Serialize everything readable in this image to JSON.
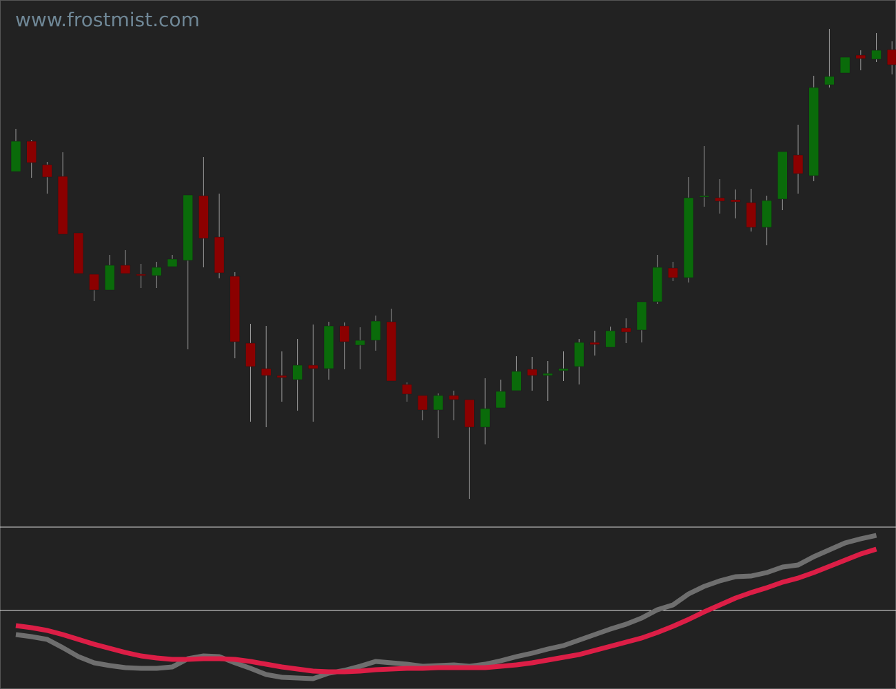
{
  "watermark": "www.frostmist.com",
  "chart_data": [
    {
      "type": "candlestick",
      "up_color": "#0a6b0a",
      "down_color": "#8b0000",
      "wick_color": "#9a9a9a",
      "ylim": [
        23.5,
        100
      ],
      "open": [
        75.1,
        79.5,
        76.1,
        74.4,
        66.2,
        60.2,
        57.9,
        61.5,
        60.2,
        60.0,
        61.3,
        62.2,
        71.6,
        65.6,
        59.9,
        50.2,
        46.5,
        45.5,
        44.9,
        47.0,
        46.5,
        52.7,
        49.9,
        50.6,
        53.3,
        44.2,
        42.6,
        40.5,
        42.6,
        42.0,
        38.0,
        40.8,
        43.3,
        46.4,
        45.5,
        46.2,
        46.8,
        50.3,
        49.6,
        52.4,
        52.1,
        56.2,
        61.1,
        59.7,
        71.4,
        71.3,
        71.0,
        70.6,
        67.0,
        71.1,
        77.5,
        74.5,
        87.7,
        89.4,
        92.0,
        91.4,
        92.8
      ],
      "high": [
        81.3,
        79.7,
        76.5,
        77.9,
        66.2,
        60.2,
        63.0,
        63.7,
        61.7,
        62.0,
        63.0,
        71.7,
        77.2,
        71.9,
        60.5,
        53.0,
        52.7,
        49.0,
        50.8,
        52.9,
        53.3,
        53.2,
        52.5,
        54.2,
        55.2,
        44.5,
        42.6,
        42.9,
        43.3,
        42.0,
        45.1,
        44.9,
        48.3,
        48.2,
        47.6,
        49.0,
        50.8,
        52.0,
        52.6,
        53.8,
        56.2,
        63.0,
        62.0,
        74.3,
        78.8,
        74.0,
        72.5,
        72.6,
        71.6,
        78.0,
        81.9,
        89.0,
        95.8,
        91.7,
        92.7,
        95.2,
        94.0
      ],
      "low": [
        75.1,
        74.2,
        71.9,
        66.0,
        60.3,
        56.3,
        57.9,
        60.3,
        58.2,
        58.2,
        61.3,
        49.3,
        61.2,
        59.6,
        48.0,
        38.8,
        38.0,
        41.7,
        40.4,
        38.8,
        44.9,
        46.4,
        46.4,
        49.1,
        44.7,
        41.7,
        39.0,
        36.4,
        39.0,
        27.6,
        35.5,
        40.8,
        43.3,
        43.3,
        41.8,
        44.7,
        44.2,
        48.4,
        49.6,
        50.2,
        50.3,
        55.9,
        59.2,
        59.0,
        70.0,
        69.0,
        68.3,
        66.4,
        64.4,
        69.5,
        71.9,
        73.7,
        87.3,
        89.4,
        89.8,
        91.0,
        89.2
      ],
      "close": [
        79.5,
        76.4,
        74.3,
        66.0,
        60.3,
        57.9,
        61.5,
        60.3,
        60.0,
        61.2,
        62.4,
        71.7,
        65.4,
        60.4,
        50.4,
        46.8,
        45.5,
        45.2,
        47.0,
        46.5,
        52.7,
        50.4,
        50.6,
        53.4,
        44.7,
        42.8,
        40.5,
        42.6,
        42.0,
        38.0,
        40.7,
        43.2,
        46.1,
        45.5,
        45.8,
        46.5,
        50.3,
        50.0,
        52.0,
        51.8,
        56.2,
        61.2,
        59.7,
        71.3,
        71.6,
        70.8,
        70.7,
        67.0,
        70.9,
        78.0,
        74.8,
        87.3,
        88.9,
        91.7,
        91.5,
        92.7,
        90.6
      ]
    },
    {
      "type": "line",
      "ylim": [
        0,
        23.5
      ],
      "levels": [
        11.4
      ],
      "level_color": "#e6e6e6",
      "series": [
        {
          "color": "#6e6e6e",
          "values": [
            7.9,
            7.6,
            7.2,
            6.0,
            4.7,
            3.8,
            3.4,
            3.1,
            3.0,
            3.0,
            3.2,
            4.4,
            4.8,
            4.7,
            3.8,
            3.0,
            2.1,
            1.7,
            1.6,
            1.5,
            2.3,
            2.7,
            3.3,
            4.0,
            3.8,
            3.6,
            3.3,
            3.4,
            3.5,
            3.3,
            3.6,
            4.1,
            4.7,
            5.2,
            5.8,
            6.3,
            7.1,
            7.9,
            8.7,
            9.4,
            10.3,
            11.5,
            12.2,
            13.8,
            14.9,
            15.7,
            16.3,
            16.4,
            16.9,
            17.7,
            18.0,
            19.2,
            20.2,
            21.2,
            21.8,
            22.3,
            null
          ]
        },
        {
          "color": "#dc1e46",
          "values": [
            9.2,
            8.9,
            8.5,
            7.9,
            7.2,
            6.5,
            5.9,
            5.3,
            4.8,
            4.5,
            4.3,
            4.3,
            4.4,
            4.4,
            4.3,
            4.0,
            3.6,
            3.2,
            2.9,
            2.6,
            2.5,
            2.5,
            2.6,
            2.8,
            2.9,
            3.0,
            3.0,
            3.1,
            3.1,
            3.1,
            3.1,
            3.3,
            3.5,
            3.8,
            4.2,
            4.6,
            5.0,
            5.6,
            6.2,
            6.8,
            7.4,
            8.2,
            9.1,
            10.1,
            11.2,
            12.2,
            13.2,
            14.0,
            14.7,
            15.5,
            16.1,
            16.9,
            17.8,
            18.7,
            19.6,
            20.3,
            null
          ]
        }
      ]
    }
  ]
}
